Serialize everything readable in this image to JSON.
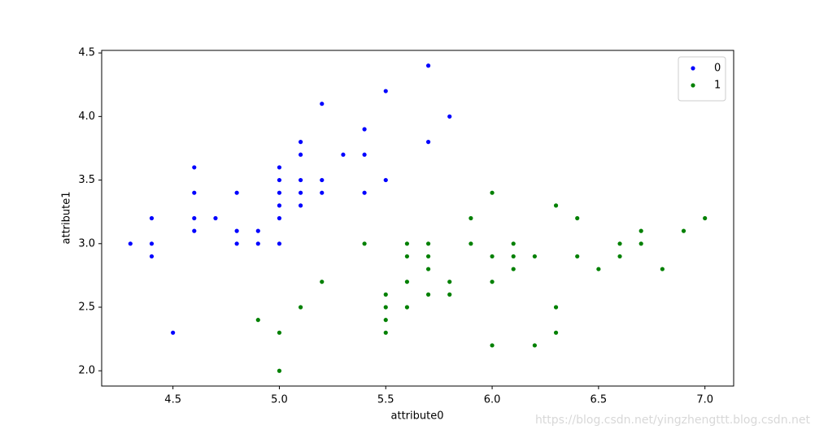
{
  "chart_data": {
    "type": "scatter",
    "x_label": "attribute0",
    "y_label": "attribute1",
    "xlim": [
      4.165,
      7.135
    ],
    "ylim": [
      1.88,
      4.52
    ],
    "xticks": [
      4.5,
      {
        "value": 5.0,
        "label": "5.0"
      },
      5.5,
      {
        "value": 6.0,
        "label": "6.0"
      },
      6.5,
      {
        "value": 7.0,
        "label": "7.0"
      }
    ],
    "yticks": [
      {
        "value": 2.0,
        "label": "2.0"
      },
      2.5,
      {
        "value": 3.0,
        "label": "3.0"
      },
      3.5,
      {
        "value": 4.0,
        "label": "4.0"
      },
      4.5
    ],
    "legend": "upper right",
    "series": [
      {
        "name": "0",
        "color": "#0000ff",
        "x": [
          4.3,
          4.4,
          4.4,
          4.4,
          4.5,
          4.6,
          4.6,
          4.6,
          4.6,
          4.7,
          4.8,
          4.8,
          4.8,
          4.9,
          4.9,
          5.0,
          5.0,
          5.0,
          5.0,
          5.0,
          5.0,
          5.1,
          5.1,
          5.1,
          5.1,
          5.1,
          5.2,
          5.2,
          5.2,
          5.3,
          5.4,
          5.4,
          5.4,
          5.5,
          5.5,
          5.7,
          5.7,
          5.8
        ],
        "y": [
          3.0,
          2.9,
          3.0,
          3.2,
          2.3,
          3.1,
          3.2,
          3.4,
          3.6,
          3.2,
          3.0,
          3.1,
          3.4,
          3.0,
          3.1,
          3.0,
          3.2,
          3.3,
          3.4,
          3.5,
          3.6,
          3.3,
          3.4,
          3.5,
          3.7,
          3.8,
          3.4,
          3.5,
          4.1,
          3.7,
          3.4,
          3.7,
          3.9,
          3.5,
          4.2,
          3.8,
          4.4,
          4.0
        ]
      },
      {
        "name": "1",
        "color": "#008000",
        "x": [
          4.9,
          5.0,
          5.0,
          5.1,
          5.2,
          5.4,
          5.5,
          5.5,
          5.5,
          5.5,
          5.6,
          5.6,
          5.6,
          5.6,
          5.7,
          5.7,
          5.7,
          5.7,
          5.8,
          5.8,
          5.9,
          5.9,
          6.0,
          6.0,
          6.0,
          6.0,
          6.1,
          6.1,
          6.1,
          6.2,
          6.2,
          6.3,
          6.3,
          6.3,
          6.4,
          6.4,
          6.5,
          6.6,
          6.6,
          6.7,
          6.7,
          6.8,
          6.9,
          7.0
        ],
        "y": [
          2.4,
          2.0,
          2.3,
          2.5,
          2.7,
          3.0,
          2.3,
          2.4,
          2.5,
          2.6,
          2.5,
          2.7,
          2.9,
          3.0,
          2.6,
          2.8,
          2.9,
          3.0,
          2.6,
          2.7,
          3.0,
          3.2,
          2.2,
          2.7,
          2.9,
          3.4,
          2.8,
          2.9,
          3.0,
          2.2,
          2.9,
          2.3,
          2.5,
          3.3,
          2.9,
          3.2,
          2.8,
          2.9,
          3.0,
          3.0,
          3.1,
          2.8,
          3.1,
          3.2
        ]
      }
    ],
    "watermark": "https://blog.csdn.net/yingzhengttt.blog.csdn.net"
  }
}
